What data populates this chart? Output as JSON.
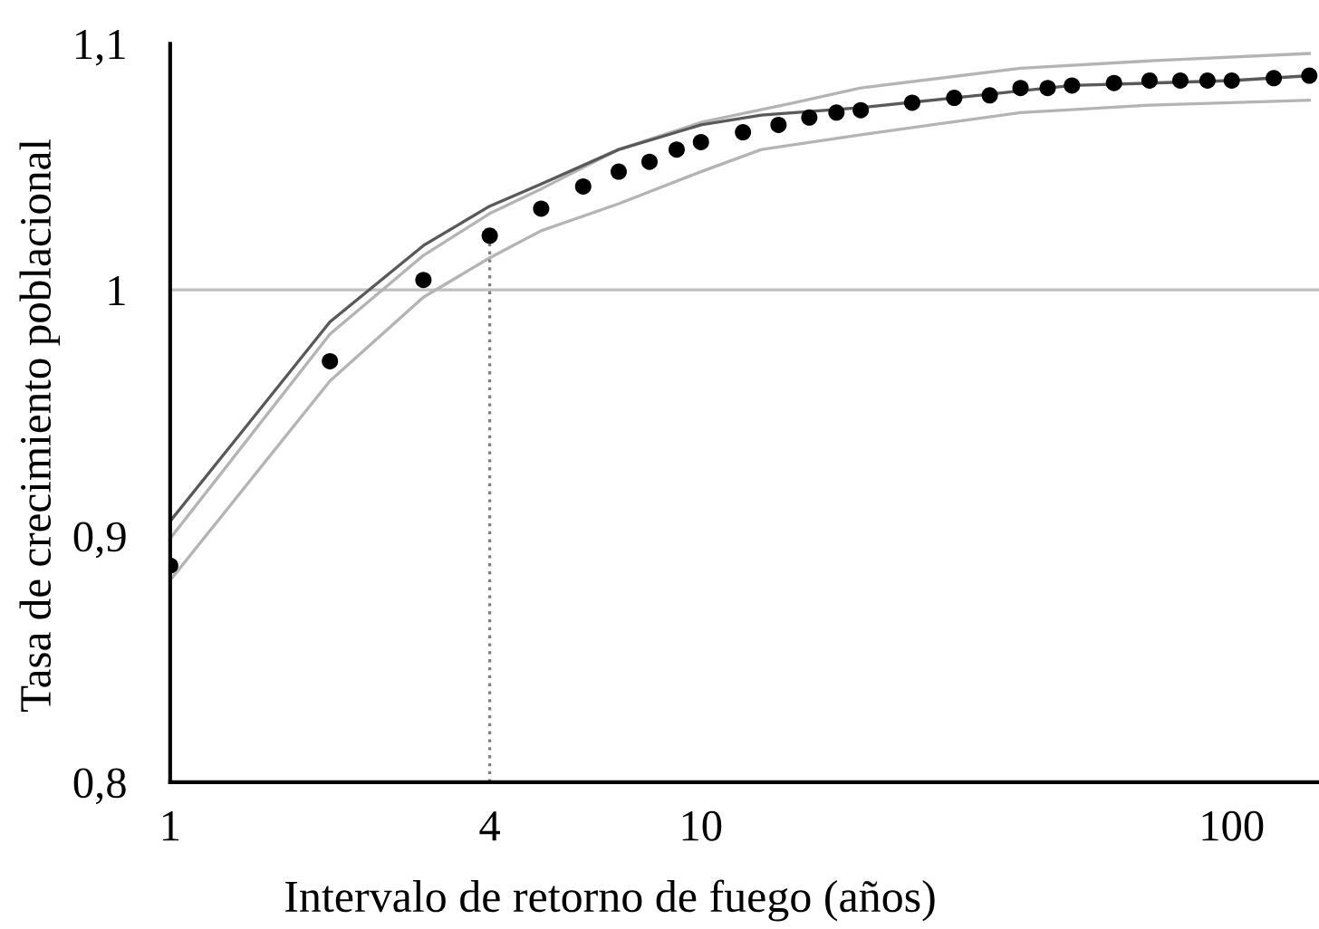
{
  "chart_data": {
    "type": "line",
    "xlabel": "Intervalo de retorno de fuego (años)",
    "ylabel": "Tasa de crecimiento poblacional",
    "log": "x",
    "xlim": [
      1,
      146
    ],
    "ylim": [
      0.8,
      1.1
    ],
    "xticks": [
      1,
      4,
      10,
      100
    ],
    "yticks": [
      {
        "value": 0.8,
        "label": "0,8"
      },
      {
        "value": 0.9,
        "label": "0,9"
      },
      1,
      {
        "value": 1.1,
        "label": "1,1"
      }
    ],
    "ref_lines": [
      {
        "axis": "y",
        "value": 1,
        "color": "#c0c0c0"
      }
    ],
    "series": [
      {
        "color": "#b4b4b4",
        "x": [
          1,
          2,
          3,
          4,
          5,
          7,
          10,
          13,
          20,
          40,
          70,
          140
        ],
        "values": [
          0.882,
          0.963,
          0.997,
          1.013,
          1.024,
          1.035,
          1.048,
          1.057,
          1.063,
          1.072,
          1.075,
          1.077
        ]
      },
      {
        "color": "#b4b4b4",
        "x": [
          1,
          2,
          3,
          4,
          5,
          7,
          10,
          15,
          20,
          40,
          70,
          140
        ],
        "values": [
          0.899,
          0.982,
          1.014,
          1.031,
          1.041,
          1.057,
          1.068,
          1.076,
          1.082,
          1.09,
          1.093,
          1.096
        ]
      },
      {
        "color": "#595959",
        "x": [
          1,
          2,
          3,
          4,
          5,
          7,
          10,
          13,
          20,
          30,
          50,
          100,
          140
        ],
        "values": [
          0.906,
          0.987,
          1.018,
          1.034,
          1.043,
          1.057,
          1.067,
          1.071,
          1.074,
          1.078,
          1.083,
          1.085,
          1.087
        ]
      },
      {
        "color": "#7f7f7f",
        "line_style": "dotted",
        "x": [
          4,
          4
        ],
        "values": [
          0.8,
          1.022
        ]
      },
      {
        "type": "scatter",
        "color": "#000000",
        "marker": "circle",
        "x": [
          1,
          2,
          3,
          4,
          5,
          6,
          7,
          8,
          9,
          10,
          12,
          14,
          16,
          18,
          20,
          25,
          30,
          35,
          40,
          45,
          50,
          60,
          70,
          80,
          90,
          100,
          120,
          140
        ],
        "values": [
          0.888,
          0.971,
          1.004,
          1.022,
          1.033,
          1.042,
          1.048,
          1.052,
          1.057,
          1.06,
          1.064,
          1.067,
          1.07,
          1.072,
          1.073,
          1.076,
          1.078,
          1.079,
          1.082,
          1.082,
          1.083,
          1.084,
          1.085,
          1.085,
          1.085,
          1.085,
          1.086,
          1.087
        ]
      }
    ]
  }
}
